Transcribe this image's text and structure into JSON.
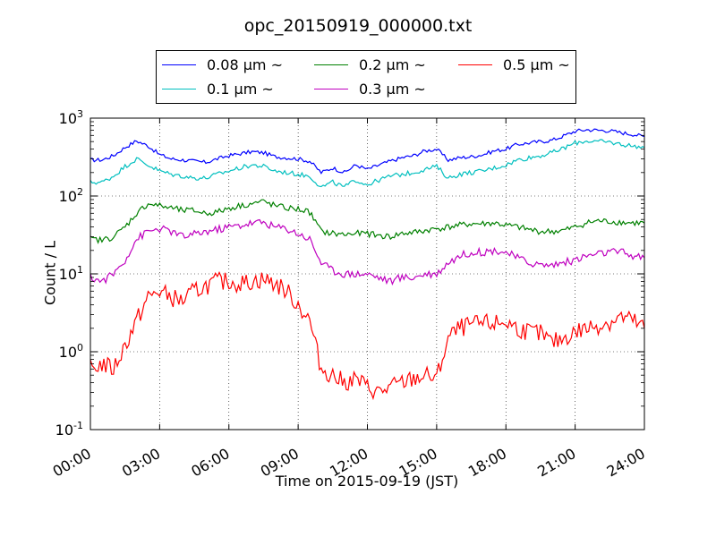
{
  "chart_data": {
    "type": "line",
    "title": "opc_20150919_000000.txt",
    "xlabel": "Time on 2015-09-19 (JST)",
    "ylabel": "Count / L",
    "yscale": "log",
    "ylim": [
      0.1,
      1000
    ],
    "xlim": [
      "00:00",
      "24:00"
    ],
    "x_ticks": [
      "00:00",
      "03:00",
      "06:00",
      "09:00",
      "12:00",
      "15:00",
      "18:00",
      "21:00",
      "24:00"
    ],
    "y_ticks": [
      {
        "base": "10",
        "exp": "-1"
      },
      {
        "base": "10",
        "exp": "0"
      },
      {
        "base": "10",
        "exp": "1"
      },
      {
        "base": "10",
        "exp": "2"
      },
      {
        "base": "10",
        "exp": "3"
      }
    ],
    "grid": true,
    "legend_position": "above plot, top-center",
    "x_hours": [
      0,
      0.5,
      1,
      1.5,
      2,
      2.5,
      3,
      3.5,
      4,
      4.5,
      5,
      5.5,
      6,
      6.5,
      7,
      7.5,
      8,
      8.5,
      9,
      9.5,
      10,
      10.5,
      11,
      11.5,
      12,
      12.5,
      13,
      13.5,
      14,
      14.5,
      15,
      15.5,
      16,
      16.5,
      17,
      17.5,
      18,
      18.5,
      19,
      19.5,
      20,
      20.5,
      21,
      21.5,
      22,
      22.5,
      23,
      23.5,
      24
    ],
    "series": [
      {
        "name": "0.08 μm ~",
        "color": "#0000ff",
        "values": [
          290,
          290,
          330,
          420,
          510,
          440,
          340,
          300,
          290,
          280,
          270,
          300,
          330,
          350,
          370,
          360,
          320,
          310,
          300,
          280,
          200,
          230,
          200,
          250,
          220,
          250,
          280,
          310,
          330,
          380,
          400,
          290,
          310,
          320,
          340,
          380,
          400,
          460,
          480,
          500,
          520,
          590,
          680,
          710,
          700,
          690,
          650,
          620,
          580
        ]
      },
      {
        "name": "0.1 μm ~",
        "color": "#00bfbf",
        "values": [
          150,
          150,
          180,
          240,
          300,
          250,
          210,
          190,
          180,
          170,
          170,
          190,
          210,
          230,
          250,
          240,
          210,
          200,
          190,
          180,
          130,
          150,
          130,
          160,
          140,
          160,
          180,
          190,
          200,
          220,
          240,
          170,
          190,
          200,
          210,
          230,
          250,
          290,
          310,
          330,
          360,
          410,
          480,
          510,
          500,
          490,
          460,
          440,
          420
        ]
      },
      {
        "name": "0.2 μm ~",
        "color": "#008000",
        "values": [
          28,
          27,
          30,
          40,
          60,
          80,
          75,
          70,
          65,
          65,
          60,
          62,
          70,
          75,
          80,
          85,
          75,
          70,
          68,
          62,
          35,
          33,
          32,
          33,
          33,
          31,
          30,
          33,
          34,
          36,
          38,
          40,
          42,
          44,
          44,
          45,
          42,
          40,
          37,
          35,
          35,
          36,
          40,
          45,
          48,
          47,
          46,
          45,
          45
        ]
      },
      {
        "name": "0.3 μm ~",
        "color": "#bf00bf",
        "values": [
          9,
          8,
          10,
          15,
          28,
          35,
          38,
          35,
          30,
          32,
          35,
          37,
          40,
          42,
          45,
          46,
          40,
          38,
          33,
          28,
          14,
          11,
          10,
          10,
          10,
          9,
          8,
          9,
          9,
          10,
          10,
          14,
          17,
          19,
          19,
          20,
          19,
          16,
          14,
          13,
          13,
          14,
          15,
          17,
          18,
          19,
          19,
          17,
          16
        ]
      },
      {
        "name": "0.5 μm ~",
        "color": "#ff0000",
        "values": [
          0.6,
          0.7,
          0.6,
          1.2,
          2.5,
          5,
          6,
          5,
          4.5,
          6,
          7,
          8,
          8,
          7.5,
          8,
          8.5,
          7.5,
          6,
          4,
          2.5,
          0.6,
          0.5,
          0.4,
          0.45,
          0.35,
          0.3,
          0.35,
          0.4,
          0.45,
          0.5,
          0.45,
          1.5,
          2,
          2.2,
          2.3,
          2.3,
          2.4,
          2,
          1.8,
          1.7,
          1.3,
          1.5,
          1.8,
          2,
          2.2,
          2.4,
          2.8,
          2.5,
          2.0
        ]
      }
    ]
  }
}
